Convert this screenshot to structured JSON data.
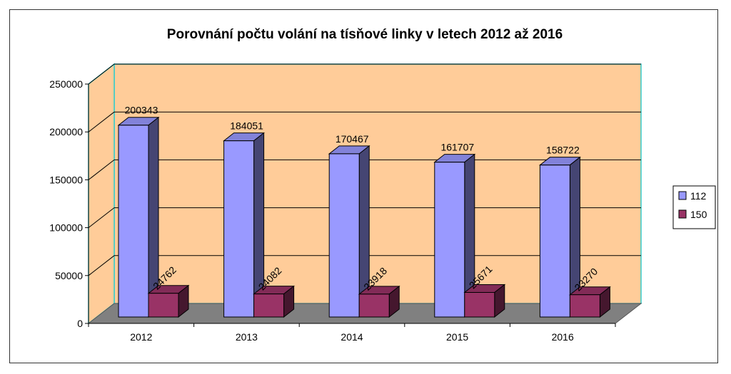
{
  "chart_data": {
    "type": "bar",
    "title": "Porovnání počtu volání na tísňové linky v letech 2012 až 2016",
    "categories": [
      "2012",
      "2013",
      "2014",
      "2015",
      "2016"
    ],
    "series": [
      {
        "name": "112",
        "values": [
          200343,
          184051,
          170467,
          161707,
          158722
        ],
        "labels": [
          "200343",
          "184051",
          "170467",
          "161707",
          "158722"
        ],
        "color": "#9999ff"
      },
      {
        "name": "150",
        "values": [
          24762,
          24082,
          23918,
          25671,
          23270
        ],
        "labels": [
          "24762",
          "24082",
          "23918",
          "25671",
          "23270"
        ],
        "color": "#993366"
      }
    ],
    "ylim": [
      0,
      250000
    ],
    "yticks": [
      "0",
      "50000",
      "100000",
      "150000",
      "200000",
      "250000"
    ],
    "grid": true,
    "legend_position": "right",
    "colors": {
      "plot_wall": "#ffcc99",
      "floor": "#808080",
      "wall_border": "#33cccc"
    }
  }
}
